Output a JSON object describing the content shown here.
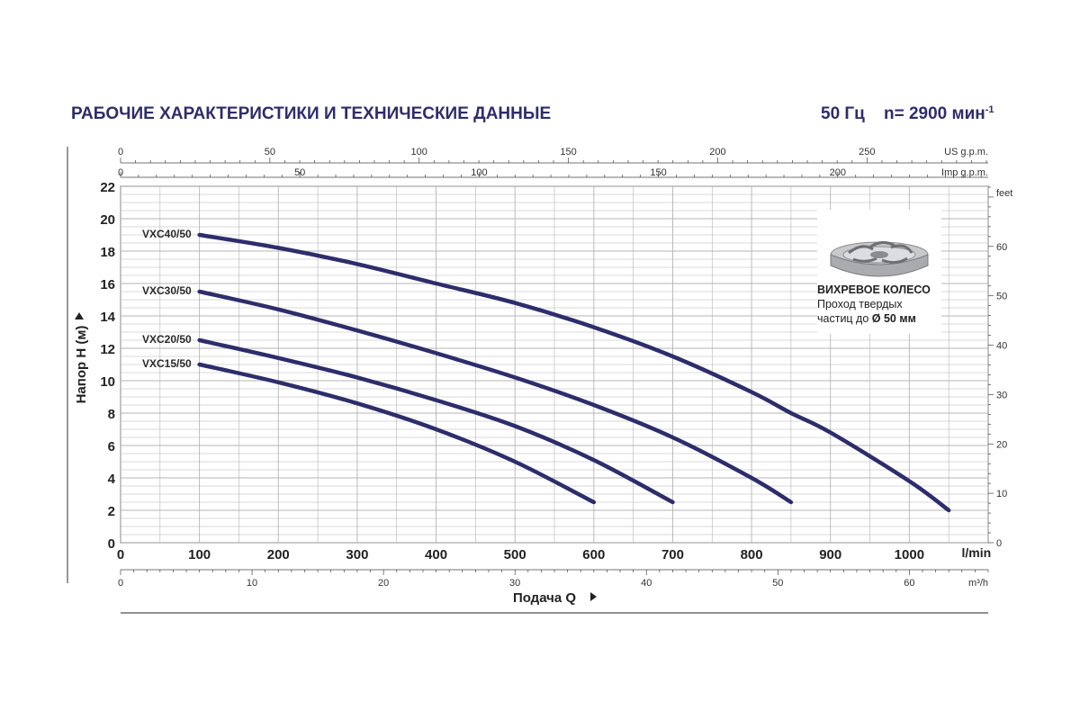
{
  "header": {
    "title": "РАБОЧИЕ ХАРАКТЕРИСТИКИ И ТЕХНИЧЕСКИЕ ДАННЫЕ",
    "freq": "50 Гц",
    "speed": "n= 2900 мин",
    "speed_sup": "-1"
  },
  "inset": {
    "title": "ВИХРЕВОЕ КОЛЕСО",
    "line1": "Проход твердых",
    "line2_prefix": "частиц до ",
    "line2_bold": "Ø 50 мм"
  },
  "colors": {
    "curve": "#2e2d6b",
    "text": "#2e2d6b",
    "grid": "#b5b5b5"
  },
  "chart_data": {
    "type": "line",
    "xlabel": "Подача Q",
    "ylabel": "Напор H (м)",
    "x_unit": "l/min",
    "xlim": [
      0,
      1100
    ],
    "ylim": [
      0,
      22
    ],
    "x_ticks": [
      0,
      100,
      200,
      300,
      400,
      500,
      600,
      700,
      800,
      900,
      1000
    ],
    "y_ticks": [
      0,
      2,
      4,
      6,
      8,
      10,
      12,
      14,
      16,
      18,
      20,
      22
    ],
    "grid": true,
    "secondary_axes": {
      "us_gpm": {
        "label": "US g.p.m.",
        "ticks": [
          0,
          50,
          100,
          150,
          200,
          250
        ]
      },
      "imp_gpm": {
        "label": "Imp g.p.m.",
        "ticks": [
          0,
          50,
          100,
          150,
          200
        ]
      },
      "feet": {
        "label": "feet",
        "ticks": [
          0,
          10,
          20,
          30,
          40,
          50,
          60
        ]
      },
      "m3h": {
        "label": "m³/h",
        "ticks": [
          0,
          10,
          20,
          30,
          40,
          50,
          60
        ]
      }
    },
    "series": [
      {
        "name": "VXC40/50",
        "x": [
          100,
          200,
          300,
          400,
          500,
          600,
          700,
          800,
          850,
          900,
          1000,
          1050
        ],
        "y": [
          19.0,
          18.2,
          17.2,
          16.0,
          14.8,
          13.3,
          11.5,
          9.3,
          8.0,
          6.8,
          3.8,
          2.0
        ]
      },
      {
        "name": "VXC30/50",
        "x": [
          100,
          200,
          300,
          400,
          500,
          600,
          700,
          800,
          850
        ],
        "y": [
          15.5,
          14.4,
          13.1,
          11.7,
          10.2,
          8.5,
          6.5,
          4.0,
          2.5
        ]
      },
      {
        "name": "VXC20/50",
        "x": [
          100,
          200,
          300,
          400,
          500,
          600,
          700
        ],
        "y": [
          12.5,
          11.4,
          10.2,
          8.8,
          7.2,
          5.1,
          2.5
        ]
      },
      {
        "name": "VXC15/50",
        "x": [
          100,
          200,
          300,
          400,
          500,
          600
        ],
        "y": [
          11.0,
          9.9,
          8.6,
          7.0,
          5.0,
          2.5
        ]
      }
    ]
  }
}
